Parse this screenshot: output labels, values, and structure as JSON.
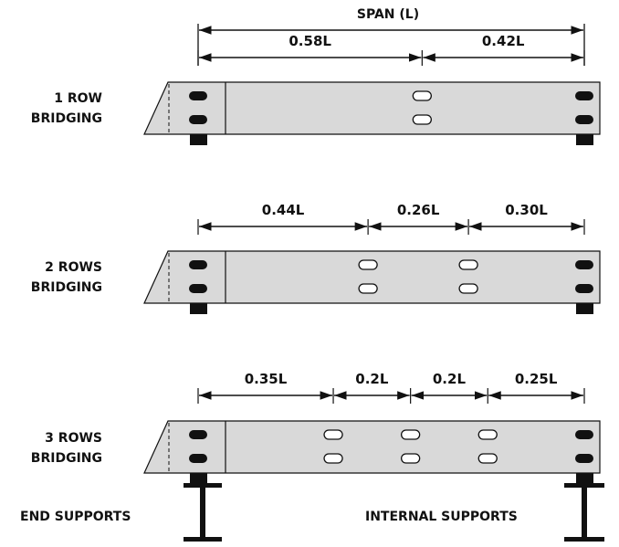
{
  "span_label": "SPAN (L)",
  "support_labels": {
    "end": "END SUPPORTS",
    "internal": "INTERNAL SUPPORTS"
  },
  "colors": {
    "joist_fill": "#d9d9d9",
    "ink": "#111111",
    "slot_open": "#ffffff",
    "slot_solid": "#111111"
  },
  "rows": [
    {
      "label_line1": "1 ROW",
      "label_line2": "BRIDGING",
      "segments": [
        "0.58L",
        "0.42L"
      ],
      "segment_fractions": [
        0.58,
        0.42
      ]
    },
    {
      "label_line1": "2 ROWS",
      "label_line2": "BRIDGING",
      "segments": [
        "0.44L",
        "0.26L",
        "0.30L"
      ],
      "segment_fractions": [
        0.44,
        0.26,
        0.3
      ]
    },
    {
      "label_line1": "3 ROWS",
      "label_line2": "BRIDGING",
      "segments": [
        "0.35L",
        "0.2L",
        "0.2L",
        "0.25L"
      ],
      "segment_fractions": [
        0.35,
        0.2,
        0.2,
        0.25
      ]
    }
  ]
}
